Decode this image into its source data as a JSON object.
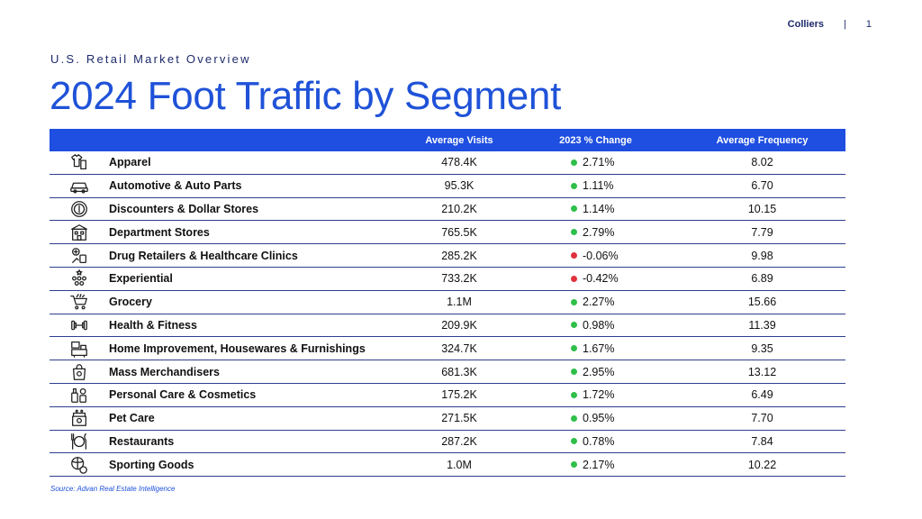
{
  "header": {
    "brand": "Colliers",
    "separator": "|",
    "page_number": "1"
  },
  "kicker": "U.S. Retail Market Overview",
  "title": "2024 Foot Traffic by Segment",
  "table": {
    "columns": [
      "",
      "",
      "Average Visits",
      "2023 % Change",
      "Average Frequency"
    ],
    "rows": [
      {
        "icon": "apparel-icon",
        "segment": "Apparel",
        "visits": "478.4K",
        "change": "2.71%",
        "trend": "positive",
        "frequency": "8.02"
      },
      {
        "icon": "car-icon",
        "segment": "Automotive & Auto Parts",
        "visits": "95.3K",
        "change": "1.11%",
        "trend": "positive",
        "frequency": "6.70"
      },
      {
        "icon": "dollar-coin-icon",
        "segment": "Discounters & Dollar Stores",
        "visits": "210.2K",
        "change": "1.14%",
        "trend": "positive",
        "frequency": "10.15"
      },
      {
        "icon": "department-store-icon",
        "segment": "Department Stores",
        "visits": "765.5K",
        "change": "2.79%",
        "trend": "positive",
        "frequency": "7.79"
      },
      {
        "icon": "pharmacy-icon",
        "segment": "Drug Retailers & Healthcare Clinics",
        "visits": "285.2K",
        "change": "-0.06%",
        "trend": "negative",
        "frequency": "9.98"
      },
      {
        "icon": "audience-icon",
        "segment": "Experiential",
        "visits": "733.2K",
        "change": "-0.42%",
        "trend": "negative",
        "frequency": "6.89"
      },
      {
        "icon": "shopping-cart-icon",
        "segment": "Grocery",
        "visits": "1.1M",
        "change": "2.27%",
        "trend": "positive",
        "frequency": "15.66"
      },
      {
        "icon": "dumbbell-icon",
        "segment": "Health & Fitness",
        "visits": "209.9K",
        "change": "0.98%",
        "trend": "positive",
        "frequency": "11.39"
      },
      {
        "icon": "furniture-icon",
        "segment": "Home Improvement, Housewares & Furnishings",
        "visits": "324.7K",
        "change": "1.67%",
        "trend": "positive",
        "frequency": "9.35"
      },
      {
        "icon": "shopping-bag-icon",
        "segment": "Mass Merchandisers",
        "visits": "681.3K",
        "change": "2.95%",
        "trend": "positive",
        "frequency": "13.12"
      },
      {
        "icon": "cosmetics-icon",
        "segment": "Personal Care & Cosmetics",
        "visits": "175.2K",
        "change": "1.72%",
        "trend": "positive",
        "frequency": "6.49"
      },
      {
        "icon": "pet-food-icon",
        "segment": "Pet Care",
        "visits": "271.5K",
        "change": "0.95%",
        "trend": "positive",
        "frequency": "7.70"
      },
      {
        "icon": "dining-icon",
        "segment": "Restaurants",
        "visits": "287.2K",
        "change": "0.78%",
        "trend": "positive",
        "frequency": "7.84"
      },
      {
        "icon": "sports-balls-icon",
        "segment": "Sporting Goods",
        "visits": "1.0M",
        "change": "2.17%",
        "trend": "positive",
        "frequency": "10.22"
      }
    ]
  },
  "colors": {
    "positive": "#2fbf4a",
    "negative": "#e0323c",
    "header_bg": "#1f4fe0",
    "title": "#1f52d8"
  },
  "source": "Source: Advan Real Estate Intelligence"
}
